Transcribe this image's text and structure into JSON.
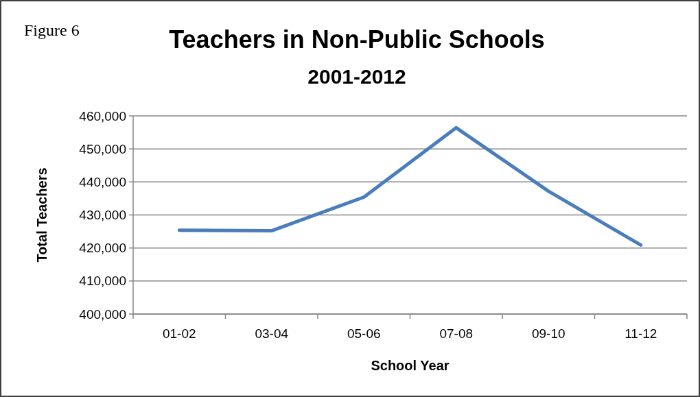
{
  "chart_data": {
    "type": "line",
    "title": "Teachers in Non-Public Schools",
    "subtitle": "2001-2012",
    "xlabel": "School Year",
    "ylabel": "Total Teachers",
    "annotations": [
      "Figure 6"
    ],
    "categories": [
      "01-02",
      "03-04",
      "05-06",
      "07-08",
      "09-10",
      "11-12"
    ],
    "series": [
      {
        "color": "#4a7ebb",
        "values": [
          425400,
          425200,
          435400,
          456400,
          437200,
          420900
        ]
      }
    ],
    "ylim": [
      400000,
      460000
    ],
    "yticks": [
      {
        "value": 400000,
        "label": "400,000"
      },
      {
        "value": 410000,
        "label": "410,000"
      },
      {
        "value": 420000,
        "label": "420,000"
      },
      {
        "value": 430000,
        "label": "430,000"
      },
      {
        "value": 440000,
        "label": "440,000"
      },
      {
        "value": 450000,
        "label": "450,000"
      },
      {
        "value": 460000,
        "label": "460,000"
      }
    ],
    "grid": "y",
    "marker": "none",
    "line_style": "solid"
  }
}
